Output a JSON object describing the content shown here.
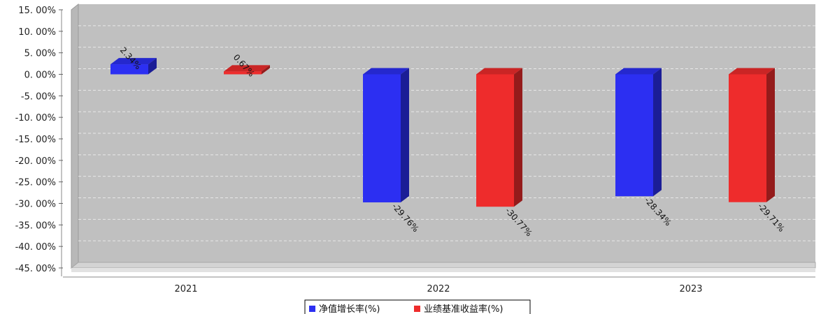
{
  "chart_data": {
    "type": "bar",
    "categories": [
      "2021",
      "2022",
      "2023"
    ],
    "series": [
      {
        "name": "净值增长率(%)",
        "values": [
          2.34,
          -29.76,
          -28.34
        ],
        "color": "#2c2ff2",
        "labels": [
          "2.34%",
          "-29.76%",
          "-28.34%"
        ]
      },
      {
        "name": "业绩基准收益率(%)",
        "values": [
          0.67,
          -30.77,
          -29.71
        ],
        "color": "#ee2c2c",
        "labels": [
          "0.67%",
          "-30.77%",
          "-29.71%"
        ]
      }
    ],
    "ylim": [
      -45,
      15
    ],
    "yticks": [
      15,
      10,
      5,
      0,
      -5,
      -10,
      -15,
      -20,
      -25,
      -30,
      -35,
      -40,
      -45
    ],
    "ytick_labels": [
      "15. 00%",
      "10. 00%",
      "5. 00%",
      "0. 00%",
      "-5. 00%",
      "-10. 00%",
      "-15. 00%",
      "-20. 00%",
      "-25. 00%",
      "-30. 00%",
      "-35. 00%",
      "-40. 00%",
      "-45. 00%"
    ],
    "grid": true,
    "legend_position": "bottom-center",
    "plot_background": "#c0c0c0"
  }
}
